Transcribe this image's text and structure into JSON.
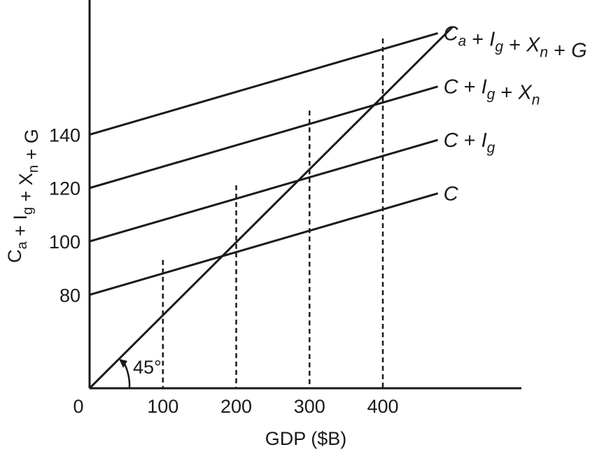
{
  "chart_data": {
    "type": "line",
    "xlabel": "GDP ($B)",
    "ylabel": "Ca + Ig + Xn + G",
    "origin_label": "0",
    "x_ticks": [
      100,
      200,
      300,
      400
    ],
    "y_ticks": [
      80,
      100,
      120,
      140
    ],
    "xlim": [
      0,
      600
    ],
    "ylim": [
      45,
      180
    ],
    "angle_label": "45°",
    "reference_line": {
      "name": "45-degree line",
      "x": [
        0,
        495
      ],
      "y": [
        45,
        180.3
      ]
    },
    "series": [
      {
        "name": "C",
        "x": [
          0,
          475
        ],
        "y": [
          80,
          118
        ]
      },
      {
        "name": "C + Ig",
        "x": [
          0,
          475
        ],
        "y": [
          100,
          138
        ]
      },
      {
        "name": "C + Ig + Xn",
        "x": [
          0,
          475
        ],
        "y": [
          120,
          158
        ]
      },
      {
        "name": "Ca + Ig + Xn + G",
        "x": [
          0,
          475
        ],
        "y": [
          140,
          178
        ]
      }
    ],
    "equilibria": [
      {
        "x": 100,
        "y": 93
      },
      {
        "x": 200,
        "y": 121
      },
      {
        "x": 300,
        "y": 149
      },
      {
        "x": 400,
        "y": 176
      }
    ],
    "grid": false,
    "legend": "none"
  }
}
